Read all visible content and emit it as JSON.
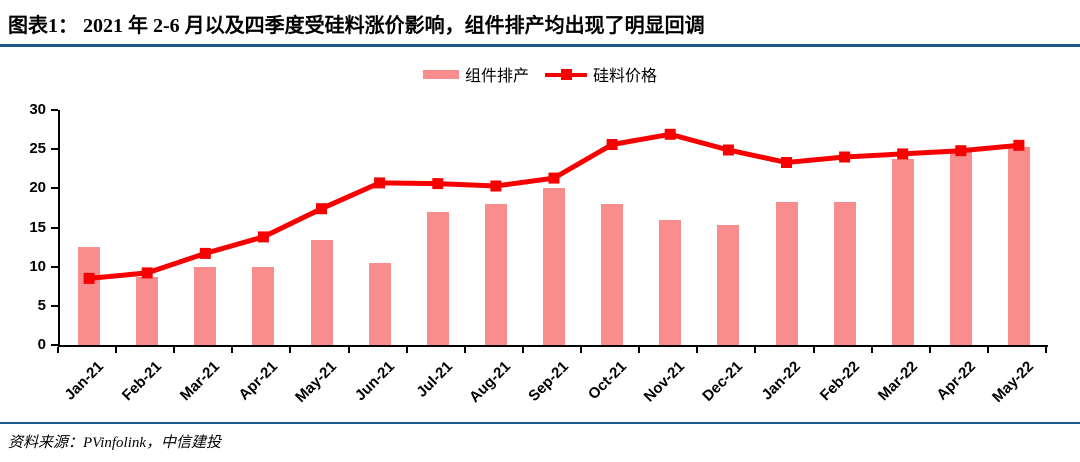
{
  "header": {
    "title": "图表1： 2021 年 2-6 月以及四季度受硅料涨价影响，组件排产均出现了明显回调"
  },
  "footer": {
    "source": "资料来源：PVinfolink，中信建投"
  },
  "theme": {
    "rule_blue": "#1B5A8C",
    "axis_black": "#000000",
    "bar_pink": "#F98C8C",
    "line_red": "#F80000"
  },
  "chart_data": {
    "type": "bar",
    "combo": "bar+line",
    "title": "图表1： 2021 年 2-6 月以及四季度受硅料涨价影响，组件排产均出现了明显回调",
    "xlabel": "",
    "ylabel": "",
    "grid": false,
    "legend_position": "top-center",
    "ylim": [
      0,
      30
    ],
    "yticks": [
      0,
      5,
      10,
      15,
      20,
      25,
      30
    ],
    "categories": [
      "Jan-21",
      "Feb-21",
      "Mar-21",
      "Apr-21",
      "May-21",
      "Jun-21",
      "Jul-21",
      "Aug-21",
      "Sep-21",
      "Oct-21",
      "Nov-21",
      "Dec-21",
      "Jan-22",
      "Feb-22",
      "Mar-22",
      "Apr-22",
      "May-22"
    ],
    "series": [
      {
        "name": "组件排产",
        "type": "bar",
        "color": "#F98C8C",
        "values": [
          12.5,
          8.7,
          10,
          10,
          13.4,
          10.5,
          17,
          18,
          20,
          18,
          16,
          15.3,
          18.2,
          18.2,
          23.8,
          24.7,
          25.3
        ]
      },
      {
        "name": "硅料价格",
        "type": "line",
        "color": "#F80000",
        "values": [
          8.5,
          9.2,
          11.7,
          13.8,
          17.4,
          20.7,
          20.6,
          20.3,
          21.3,
          25.6,
          26.9,
          24.9,
          23.3,
          24.0,
          24.4,
          24.8,
          25.5
        ]
      }
    ]
  }
}
